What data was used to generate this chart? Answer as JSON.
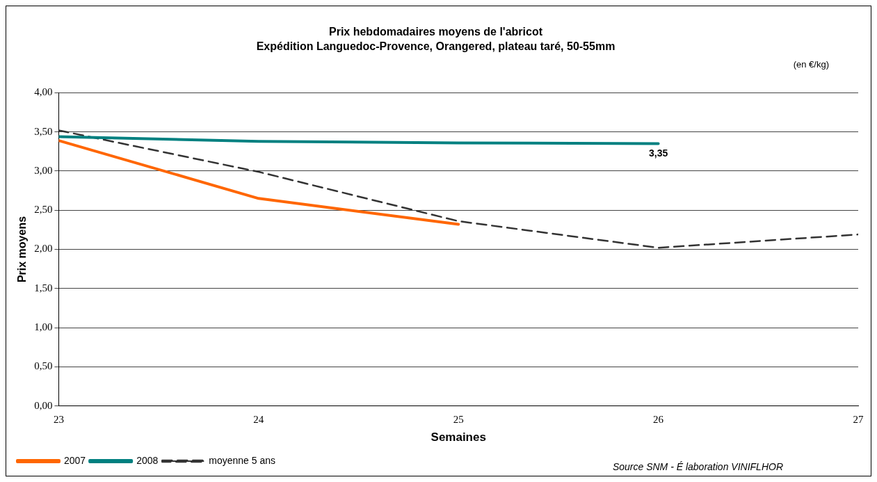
{
  "chart_data": {
    "type": "line",
    "title": "Prix hebdomadaires moyens de l'abricot",
    "subtitle": "Expédition Languedoc-Provence, Orangered, plateau taré, 50-55mm",
    "xlabel": "Semaines",
    "ylabel": "Prix moyens",
    "annotations": [
      "(en €/kg)",
      "Source SNM - É laboration VINIFLHOR"
    ],
    "xlim": [
      23,
      27
    ],
    "xticks": [
      23,
      24,
      25,
      26,
      27
    ],
    "ylim": [
      0,
      4
    ],
    "yticks": [
      {
        "value": 0,
        "label": "0,00"
      },
      {
        "value": 0.5,
        "label": "0,50"
      },
      {
        "value": 1,
        "label": "1,00"
      },
      {
        "value": 1.5,
        "label": "1,50"
      },
      {
        "value": 2,
        "label": "2,00"
      },
      {
        "value": 2.5,
        "label": "2,50"
      },
      {
        "value": 3,
        "label": "3,00"
      },
      {
        "value": 3.5,
        "label": "3,50"
      },
      {
        "value": 4,
        "label": "4,00"
      }
    ],
    "grid": "y",
    "legend": "bottom left",
    "marker": "none",
    "series": [
      {
        "name": "2007",
        "color": "#ff6600",
        "x": [
          23,
          24,
          25
        ],
        "values": [
          3.39,
          2.65,
          2.32
        ],
        "line_style": "solid"
      },
      {
        "name": "2008",
        "color": "#008080",
        "x": [
          23,
          24,
          25,
          26
        ],
        "values": [
          3.44,
          3.38,
          3.36,
          3.35
        ],
        "line_style": "solid",
        "value_labels": [
          null,
          null,
          null,
          "3,35"
        ]
      },
      {
        "name": "moyenne 5 ans",
        "color": "#333333",
        "x": [
          23,
          24,
          25,
          26,
          27
        ],
        "values": [
          3.52,
          2.99,
          2.36,
          2.02,
          2.19
        ],
        "line_style": "dashed"
      }
    ]
  }
}
